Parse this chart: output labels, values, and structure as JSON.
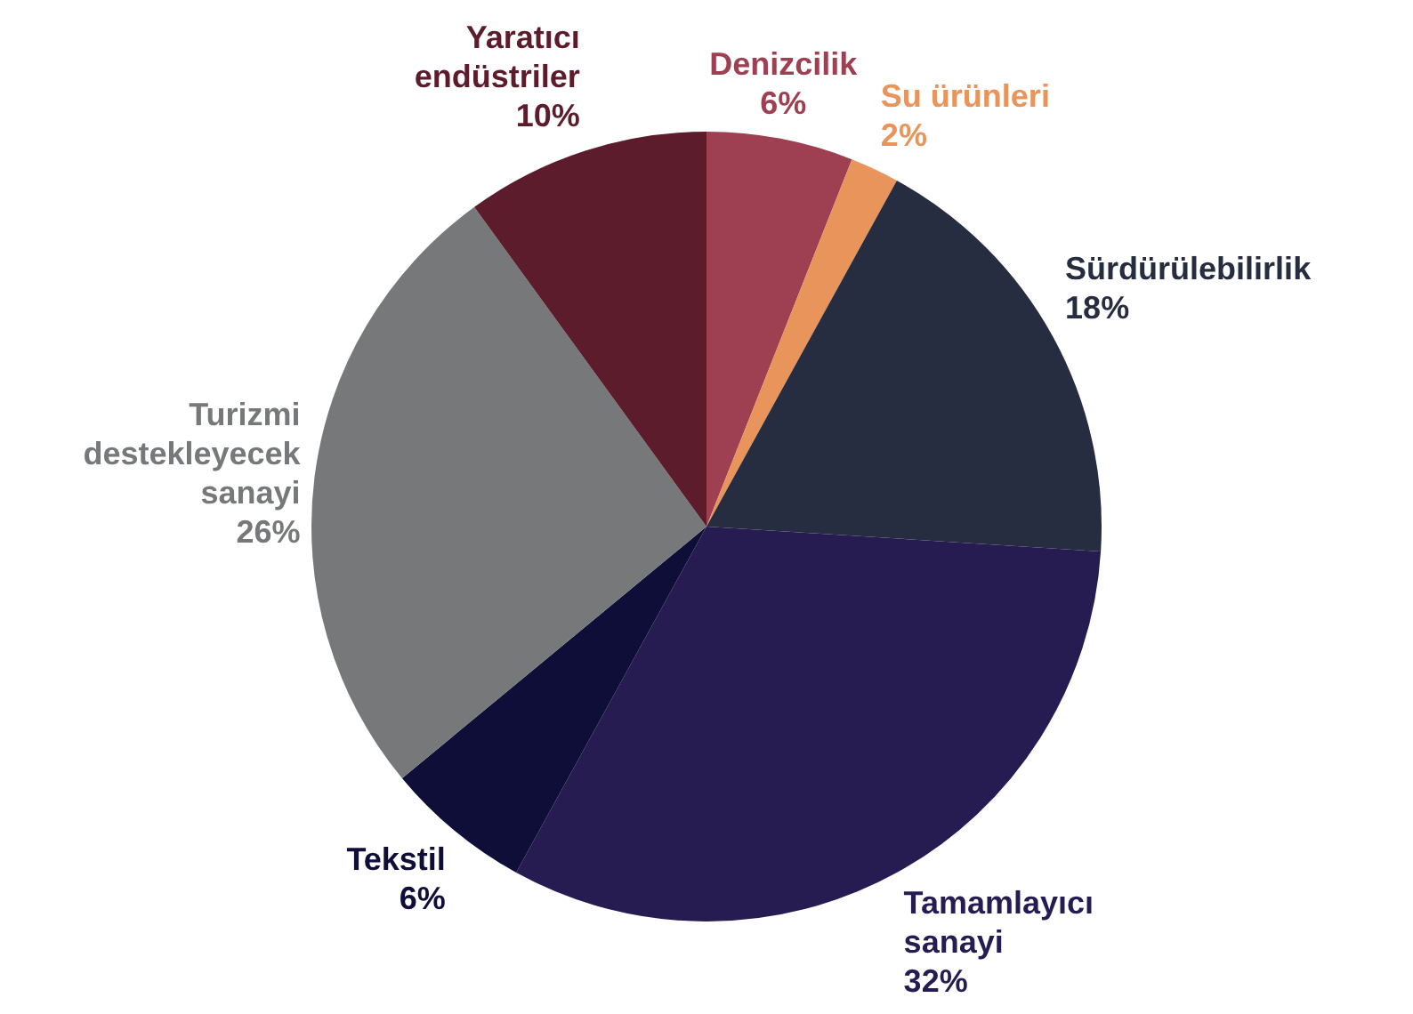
{
  "chart_data": {
    "type": "pie",
    "categories": [
      "Denizcilik",
      "Su ürünleri",
      "Sürdürülebilirlik",
      "Tamamlayıcı sanayi",
      "Tekstil",
      "Turizmi destekleyecek sanayi",
      "Yaratıcı endüstriler"
    ],
    "values": [
      6,
      2,
      18,
      32,
      6,
      26,
      10
    ],
    "value_labels": [
      "6%",
      "2%",
      "18%",
      "32%",
      "6%",
      "26%",
      "10%"
    ],
    "colors": [
      "#9e3f52",
      "#e8945a",
      "#262d40",
      "#261c52",
      "#0e0e38",
      "#767879",
      "#5c1c2c"
    ],
    "legend": false
  }
}
